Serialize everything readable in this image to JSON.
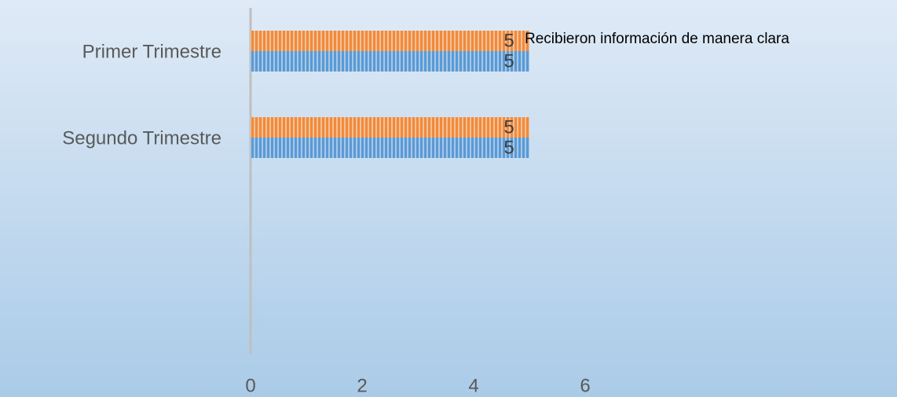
{
  "chart_data": {
    "type": "hbar",
    "categories": [
      "Primer Trimestre",
      "Segundo Trimestre",
      null,
      null
    ],
    "series": [
      {
        "name": "Recibieron información de manera clara",
        "color": "#f08a3c",
        "values": [
          5,
          5,
          null,
          null
        ]
      },
      {
        "color": "#5b9bd5",
        "values": [
          5,
          5,
          null,
          null
        ]
      }
    ],
    "xlim": [
      0,
      6
    ],
    "xticks": [
      0,
      2,
      4,
      6
    ],
    "grid": false
  }
}
